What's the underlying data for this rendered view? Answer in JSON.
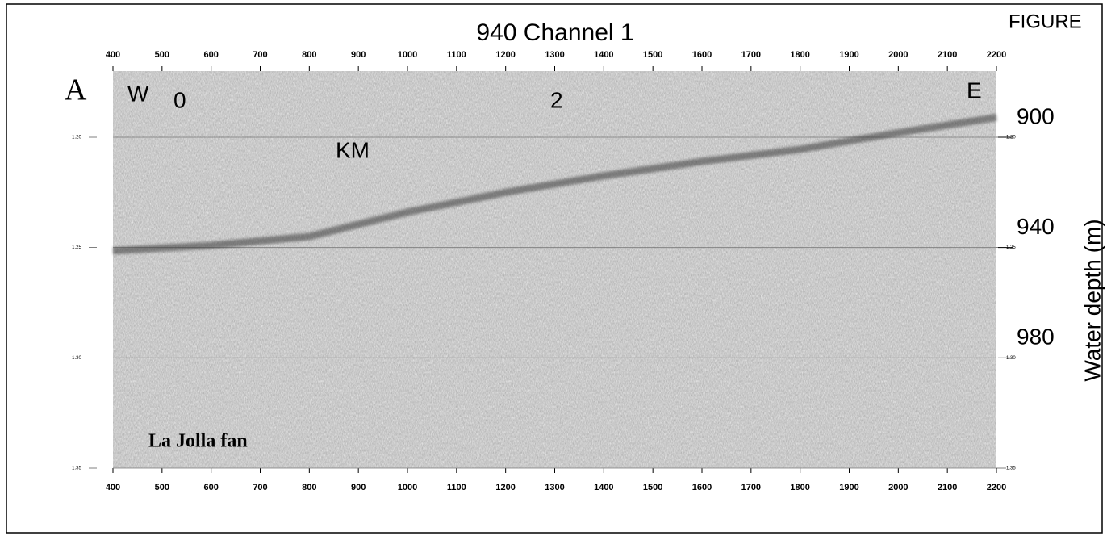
{
  "chart_data": {
    "type": "line",
    "title": "940 Channel 1",
    "x": [
      400,
      600,
      800,
      1000,
      1200,
      1400,
      1600,
      1800,
      2000,
      2200
    ],
    "values": [
      1.2515,
      1.249,
      1.245,
      1.234,
      1.225,
      1.2175,
      1.211,
      1.2055,
      1.198,
      1.191
    ],
    "color": "#3a3a3a",
    "xlim": [
      400,
      2200
    ],
    "xticks": [
      400,
      500,
      600,
      700,
      800,
      900,
      1000,
      1100,
      1200,
      1300,
      1400,
      1500,
      1600,
      1700,
      1800,
      1900,
      2000,
      2100,
      2200
    ],
    "ylim": [
      1.35,
      1.17
    ],
    "yticks": [
      {
        "value": 1.2,
        "label": "1.20"
      },
      {
        "value": 1.25,
        "label": "1.25"
      },
      {
        "value": 1.3,
        "label": "1.30"
      },
      {
        "value": 1.35,
        "label": "1.35"
      }
    ],
    "y2lim": [
      1020,
      876
    ],
    "y2ticks": [
      900,
      940,
      980
    ],
    "y2label": "Water depth (m)",
    "grid": true,
    "annotations": {
      "panel": "A",
      "west": "W",
      "km0": "0",
      "km2": "2",
      "east": "E",
      "km": "KM",
      "place": "La Jolla fan",
      "figure": "FIGURE"
    }
  }
}
